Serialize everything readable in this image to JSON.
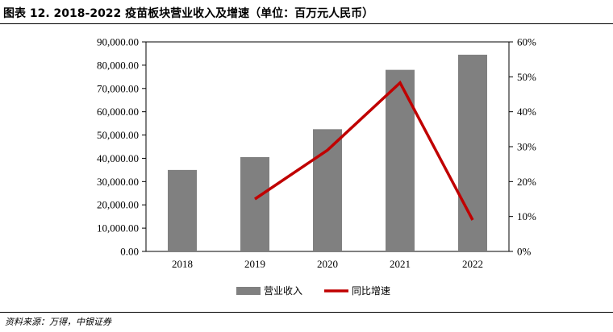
{
  "header": {
    "title": "图表 12. 2018-2022 疫苗板块营业收入及增速（单位：百万元人民币）"
  },
  "footer": {
    "source": "资料来源：万得，中银证券"
  },
  "chart_data": {
    "type": "bar",
    "categories": [
      "2018",
      "2019",
      "2020",
      "2021",
      "2022"
    ],
    "series": [
      {
        "name": "营业收入",
        "type": "bar",
        "axis": "left",
        "color": "#808080",
        "values": [
          35000,
          40500,
          52500,
          78000,
          84500
        ]
      },
      {
        "name": "同比增速",
        "type": "line",
        "axis": "right",
        "color": "#C00000",
        "values": [
          null,
          15.0,
          29.0,
          48.3,
          9.0
        ]
      }
    ],
    "y_left": {
      "ylim": [
        0,
        90000
      ],
      "ticks": [
        "0.00",
        "10,000.00",
        "20,000.00",
        "30,000.00",
        "40,000.00",
        "50,000.00",
        "60,000.00",
        "70,000.00",
        "80,000.00",
        "90,000.00"
      ]
    },
    "y_right": {
      "ylim": [
        0,
        60
      ],
      "ticks": [
        "0%",
        "10%",
        "20%",
        "30%",
        "40%",
        "50%",
        "60%"
      ]
    },
    "grid": false,
    "legend": "bottom-center"
  }
}
